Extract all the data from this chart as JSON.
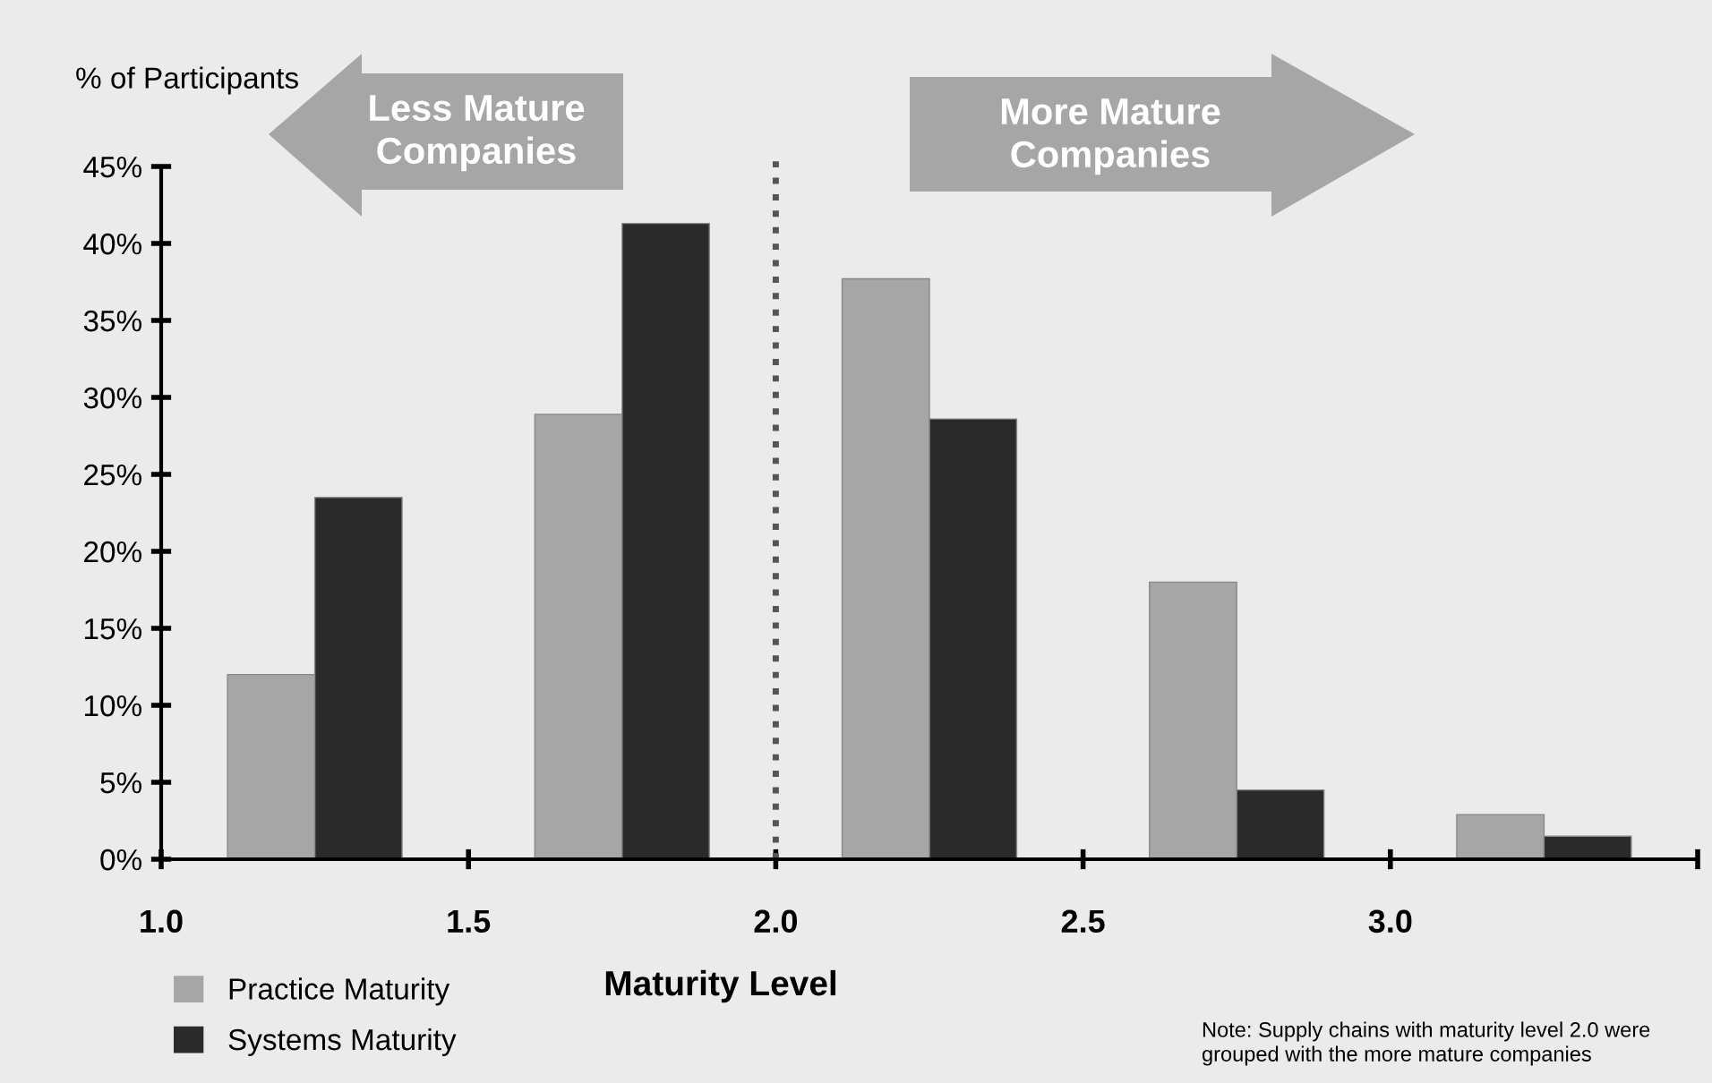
{
  "chart_data": {
    "type": "bar",
    "ylabel": "% of Participants",
    "xlabel": "Maturity Level",
    "x": [
      1.25,
      1.75,
      2.25,
      2.75,
      3.25
    ],
    "series": [
      {
        "name": "Practice Maturity",
        "color": "#a6a6a6",
        "values": [
          12.0,
          28.9,
          37.7,
          18.0,
          2.9
        ]
      },
      {
        "name": "Systems Maturity",
        "color": "#2a2a2a",
        "values": [
          23.5,
          41.3,
          28.6,
          4.5,
          1.5
        ]
      }
    ],
    "xlim": [
      1.0,
      3.5
    ],
    "xticks": [
      {
        "value": 1.0,
        "label": "1.0"
      },
      {
        "value": 1.5,
        "label": "1.5"
      },
      {
        "value": 2.0,
        "label": "2.0"
      },
      {
        "value": 2.5,
        "label": "2.5"
      },
      {
        "value": 3.0,
        "label": "3.0"
      },
      {
        "value": 3.5,
        "label": null
      }
    ],
    "ylim": [
      0,
      45
    ],
    "yticks": [
      {
        "value": 0,
        "label": "0%"
      },
      {
        "value": 5,
        "label": "5%"
      },
      {
        "value": 10,
        "label": "10%"
      },
      {
        "value": 15,
        "label": "15%"
      },
      {
        "value": 20,
        "label": "20%"
      },
      {
        "value": 25,
        "label": "25%"
      },
      {
        "value": 30,
        "label": "30%"
      },
      {
        "value": 35,
        "label": "35%"
      },
      {
        "value": 40,
        "label": "40%"
      },
      {
        "value": 45,
        "label": "45%"
      }
    ],
    "ref_lines": [
      {
        "axis": "x",
        "value": 2.0,
        "label": null,
        "color": "#555555",
        "line_style": "dotted"
      }
    ],
    "annotations": [
      "Less Mature\nCompanies",
      "More Mature\nCompanies",
      "Note: Supply chains with maturity level 2.0 were\ngrouped with the more mature companies"
    ],
    "legend": "bottom left",
    "grid": false
  }
}
